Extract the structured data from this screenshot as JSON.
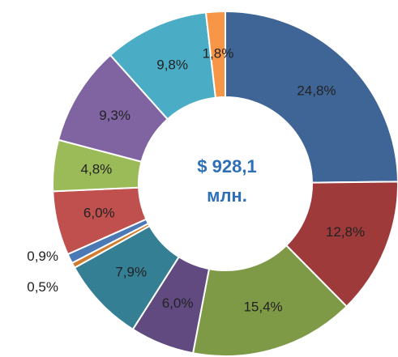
{
  "chart_data": {
    "type": "donut",
    "values": [
      24.8,
      12.8,
      15.4,
      6.0,
      7.9,
      0.5,
      0.9,
      6.0,
      4.8,
      9.3,
      9.8,
      1.8
    ],
    "value_labels": [
      "24,8%",
      "12,8%",
      "15,4%",
      "6,0%",
      "7,9%",
      "0,5%",
      "0,9%",
      "6,0%",
      "4,8%",
      "9,3%",
      "9,8%",
      "1,8%"
    ],
    "colors": [
      "#3f6597",
      "#9e3b3a",
      "#7f9a47",
      "#614a80",
      "#357f94",
      "#d17b2e",
      "#4a79b5",
      "#c0504d",
      "#9bbb59",
      "#8064a2",
      "#4bacc6",
      "#f79646"
    ],
    "center_text": [
      "$ 928,1",
      "млн."
    ]
  }
}
